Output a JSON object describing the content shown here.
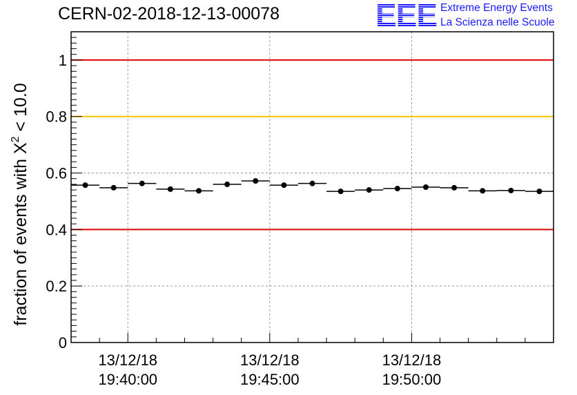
{
  "header": {
    "run_title": "CERN-02-2018-12-13-00078",
    "logo_text": "EEE",
    "logo_line1": "Extreme Energy Events",
    "logo_line2": "La Scienza nelle Scuole"
  },
  "chart_data": {
    "type": "scatter",
    "title": "CERN-02-2018-12-13-00078",
    "xlabel": "",
    "ylabel_prefix": "fraction of events with ",
    "ylabel_symbol": "X",
    "ylabel_superscript": "2",
    "ylabel_suffix": " < 10.0",
    "ylim": [
      0,
      1.1
    ],
    "yticks": [
      {
        "value": 0,
        "label": "0"
      },
      {
        "value": 0.2,
        "label": "0.2"
      },
      {
        "value": 0.4,
        "label": "0.4"
      },
      {
        "value": 0.6,
        "label": "0.6"
      },
      {
        "value": 0.8,
        "label": "0.8"
      },
      {
        "value": 1,
        "label": "1"
      }
    ],
    "x_range_minutes": [
      0,
      17
    ],
    "xticks": [
      {
        "minute": 2,
        "date": "13/12/18",
        "time": "19:40:00"
      },
      {
        "minute": 7,
        "date": "13/12/18",
        "time": "19:45:00"
      },
      {
        "minute": 12,
        "date": "13/12/18",
        "time": "19:50:00"
      }
    ],
    "x_minor_step_minutes": 1,
    "bin_width_minutes": 1,
    "x_centers_minutes": [
      0.5,
      1.5,
      2.5,
      3.5,
      4.5,
      5.5,
      6.5,
      7.5,
      8.5,
      9.5,
      10.5,
      11.5,
      12.5,
      13.5,
      14.5,
      15.5,
      16.5
    ],
    "values": [
      0.557,
      0.548,
      0.563,
      0.543,
      0.537,
      0.56,
      0.572,
      0.557,
      0.563,
      0.535,
      0.54,
      0.545,
      0.55,
      0.548,
      0.537,
      0.538,
      0.535
    ],
    "reference_lines": [
      {
        "value": 1.0,
        "color": "#e00000"
      },
      {
        "value": 0.8,
        "color": "#ffc000"
      },
      {
        "value": 0.4,
        "color": "#e00000"
      }
    ],
    "grid": true,
    "marker_color": "#000000"
  }
}
